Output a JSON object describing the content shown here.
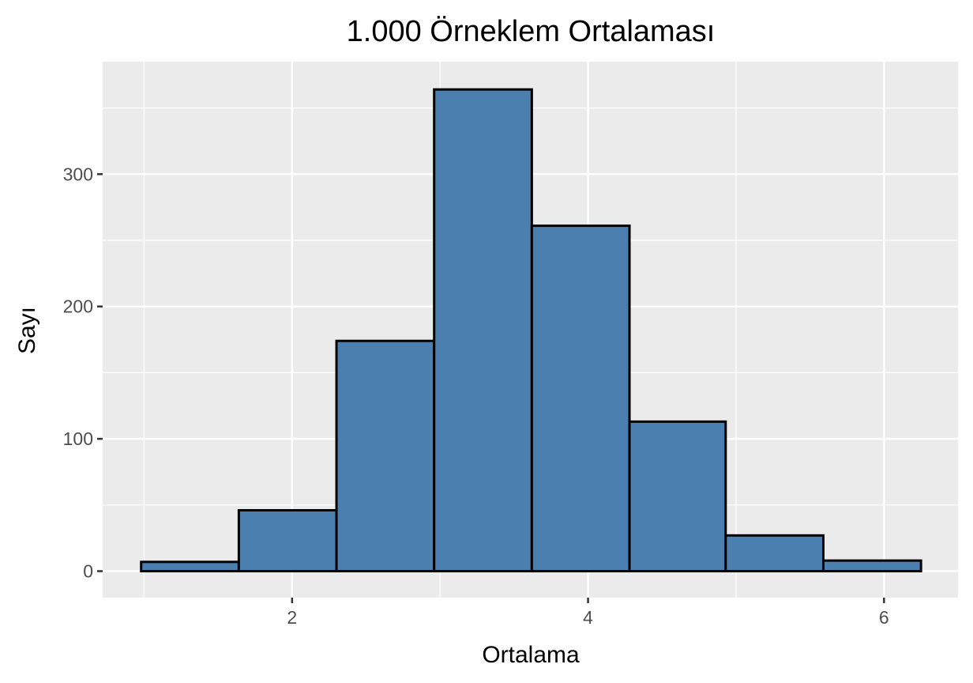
{
  "chart_data": {
    "type": "bar",
    "subtype": "histogram",
    "title": "1.000 Örneklem Ortalaması",
    "xlabel": "Ortalama",
    "ylabel": "Sayı",
    "bin_edges": [
      0.98,
      1.64,
      2.3,
      2.96,
      3.62,
      4.28,
      4.93,
      5.59,
      6.25
    ],
    "values": [
      7,
      46,
      174,
      364,
      261,
      113,
      27,
      8
    ],
    "xlim": [
      0.72,
      6.5
    ],
    "ylim": [
      -20,
      385
    ],
    "x_ticks": [
      2,
      4,
      6
    ],
    "y_ticks": [
      0,
      100,
      200,
      300
    ],
    "x_tick_labels": [
      "2",
      "4",
      "6"
    ],
    "y_tick_labels": [
      "0",
      "100",
      "200",
      "300"
    ],
    "grid": true,
    "legend": "none",
    "colors": {
      "fill": "#4a7fb0",
      "outline": "#000000",
      "panel": "#ebebeb",
      "grid": "#ffffff"
    }
  }
}
